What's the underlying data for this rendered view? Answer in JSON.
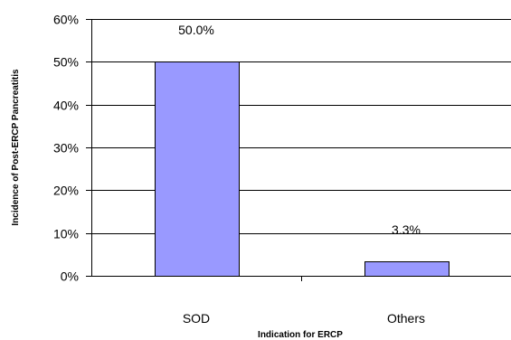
{
  "chart_data": {
    "type": "bar",
    "categories": [
      "SOD",
      "Others"
    ],
    "values": [
      50.0,
      3.3
    ],
    "data_labels": [
      "50.0%",
      "3.3%"
    ],
    "xlabel": "Indication for ERCP",
    "ylabel": "Incidence of Post-ERCP Pancreatitis",
    "ylim": [
      0,
      60
    ],
    "yticks": [
      0,
      10,
      20,
      30,
      40,
      50,
      60
    ],
    "ytick_labels": [
      "0%",
      "10%",
      "20%",
      "30%",
      "40%",
      "50%",
      "60%"
    ],
    "grid": true,
    "legend": "none",
    "colors": {
      "bar": "#9999ff",
      "bar_border": "#000000",
      "grid": "#000000"
    }
  }
}
